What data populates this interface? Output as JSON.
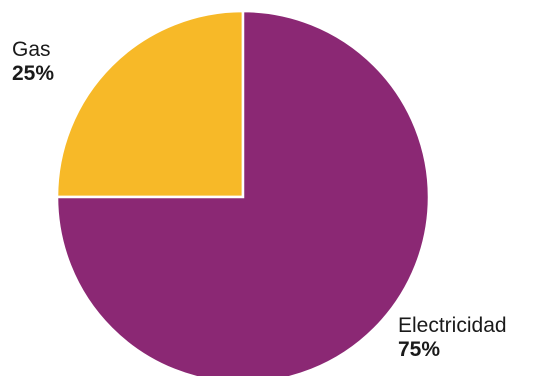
{
  "chart_data": {
    "type": "pie",
    "title": "",
    "slices": [
      {
        "label": "Gas",
        "value": 25,
        "value_label": "25%",
        "color": "#F7B928"
      },
      {
        "label": "Electricidad",
        "value": 75,
        "value_label": "75%",
        "color": "#8B2874"
      }
    ],
    "legend": "none",
    "separator_color": "#ffffff"
  }
}
